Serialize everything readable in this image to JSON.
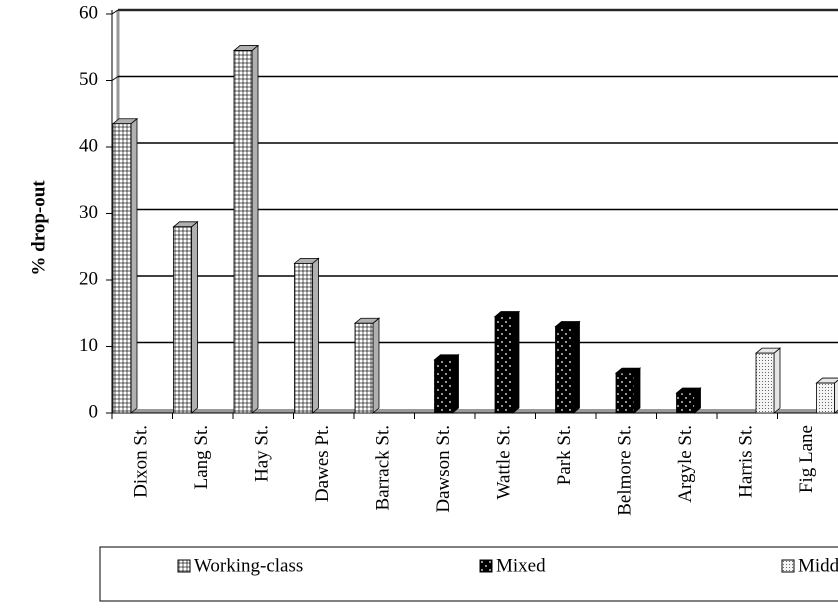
{
  "chart_data": {
    "type": "bar",
    "ylabel": "% drop-out",
    "categories": [
      "Dixon St.",
      "Lang St.",
      "Hay St.",
      "Dawes Pt.",
      "Barrack St.",
      "Dawson St.",
      "Wattle St.",
      "Park St.",
      "Belmore St.",
      "Argyle St.",
      "Harris St.",
      "Fig Lane"
    ],
    "series": [
      {
        "name": "Working-class",
        "color": "#b0b0b0",
        "values": [
          43.5,
          28,
          54.5,
          22.5,
          13.5,
          null,
          null,
          null,
          null,
          null,
          null,
          null
        ]
      },
      {
        "name": "Mixed",
        "color": "#000000",
        "values": [
          null,
          null,
          null,
          null,
          null,
          8,
          14.5,
          13,
          6,
          3,
          null,
          null
        ]
      },
      {
        "name": "Middle-class",
        "color": "#e6e6e6",
        "values": [
          null,
          null,
          null,
          null,
          null,
          null,
          null,
          null,
          null,
          null,
          9,
          4.5
        ]
      }
    ],
    "ylim": [
      0,
      60
    ],
    "yticks": [
      0,
      10,
      20,
      30,
      40,
      50,
      60
    ],
    "grid": true,
    "legend": "bottom"
  }
}
